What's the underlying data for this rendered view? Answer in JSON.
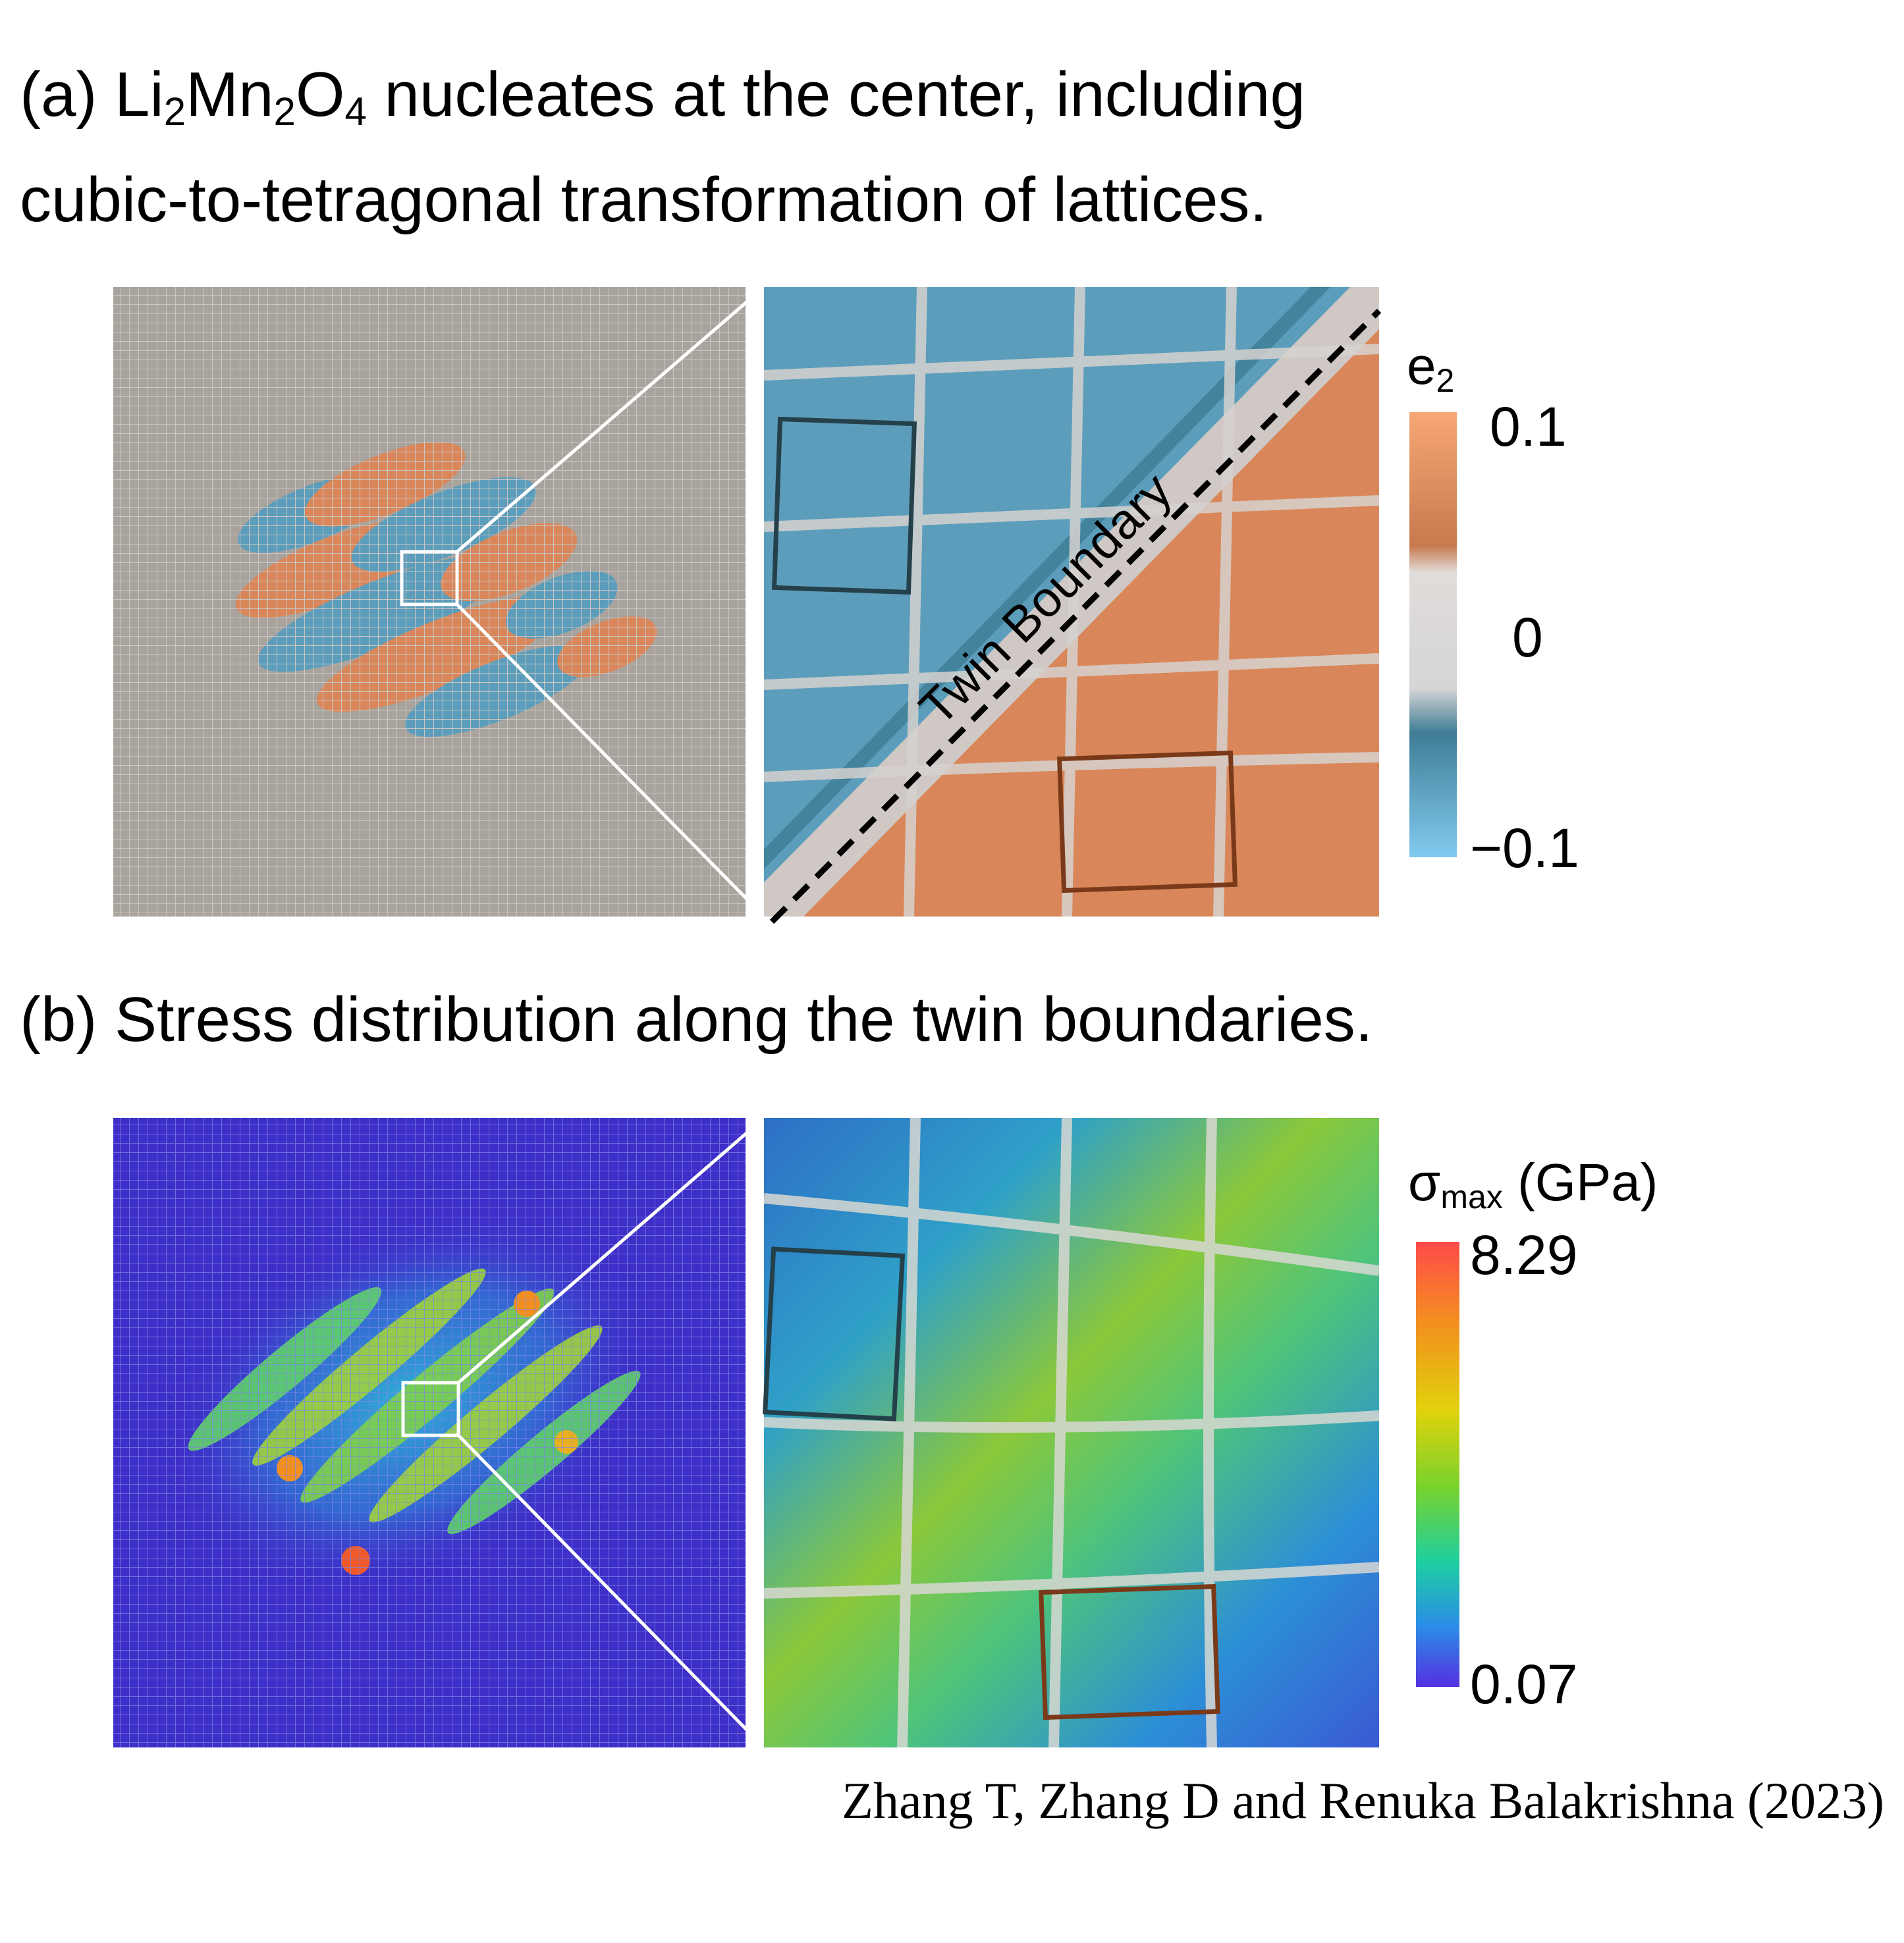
{
  "panel_a": {
    "title_prefix": "(a) Li",
    "title_sub1": "2",
    "title_mid1": "Mn",
    "title_sub2": "2",
    "title_mid2": "O",
    "title_sub3": "4",
    "title_suffix": " nucleates at the center, including",
    "title_line2": "cubic-to-tetragonal transformation of lattices.",
    "boundary_label": "Twin Boundary",
    "colorbar": {
      "label_main": "e",
      "label_sub": "2",
      "tick_max": "0.1",
      "tick_mid": "0",
      "tick_min": "−0.1",
      "colors": [
        "#f7a774",
        "#c87a4e",
        "#dcd6d2",
        "#d8d8d8",
        "#3f7d95",
        "#82cbf0"
      ]
    }
  },
  "panel_b": {
    "title": "(b) Stress distribution along the twin boundaries.",
    "colorbar": {
      "label_main": "σ",
      "label_sub": "max",
      "label_unit": " (GPa)",
      "tick_max": "8.29",
      "tick_min": "0.07",
      "colors": [
        "#ff4a4a",
        "#f38f1f",
        "#e0d20b",
        "#79d22c",
        "#1ecfa0",
        "#2a8fe6",
        "#5530e0"
      ]
    }
  },
  "citation": "Zhang T, Zhang D and Renuka Balakrishna (2023)",
  "palette": {
    "matrix_gray": "#a9a39d",
    "orange": "#d9875a",
    "blue": "#5c9dbb",
    "stress_low": "#3e2fc8",
    "dark_teal_box": "#24404a",
    "brown_box": "#7a3a1a"
  }
}
